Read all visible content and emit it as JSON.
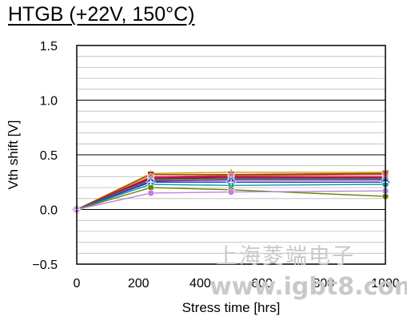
{
  "chart_data": {
    "type": "line",
    "title": "HTGB (+22V, 150°C)",
    "xlabel": "Stress time [hrs]",
    "ylabel": "Vth shift [V]",
    "xlim": [
      0,
      1000
    ],
    "ylim": [
      -0.5,
      1.5
    ],
    "x_ticks": [
      "0",
      "200",
      "400",
      "600",
      "800",
      "1000"
    ],
    "y_ticks": [
      "1.5",
      "1.0",
      "0.5",
      "0.0",
      "−0.5"
    ],
    "x_tick_values": [
      0,
      200,
      400,
      600,
      800,
      1000
    ],
    "y_tick_values": [
      1.5,
      1.0,
      0.5,
      0.0,
      -0.5
    ],
    "y_minor_step": 0.1,
    "grid": true,
    "x": [
      0,
      240,
      500,
      1000
    ],
    "series": [
      {
        "color": "#c8a000",
        "marker": "triangle",
        "values": [
          0,
          0.33,
          0.34,
          0.34
        ]
      },
      {
        "color": "#a04000",
        "marker": "square",
        "values": [
          0,
          0.32,
          0.32,
          0.33
        ]
      },
      {
        "color": "#cc3333",
        "marker": "circle",
        "values": [
          0,
          0.3,
          0.31,
          0.32
        ]
      },
      {
        "color": "#cc0066",
        "marker": "circle",
        "values": [
          0,
          0.29,
          0.3,
          0.3
        ]
      },
      {
        "color": "#7a1040",
        "marker": "circle",
        "values": [
          0,
          0.28,
          0.29,
          0.29
        ]
      },
      {
        "color": "#40a040",
        "marker": "circle",
        "values": [
          0,
          0.27,
          0.28,
          0.28
        ]
      },
      {
        "color": "#7030a0",
        "marker": "circle",
        "values": [
          0,
          0.26,
          0.27,
          0.27
        ]
      },
      {
        "color": "#3333cc",
        "marker": "diamond",
        "values": [
          0,
          0.25,
          0.25,
          0.25
        ]
      },
      {
        "color": "#00a0a0",
        "marker": "circle",
        "values": [
          0,
          0.23,
          0.22,
          0.23
        ]
      },
      {
        "color": "#708000",
        "marker": "circle",
        "values": [
          0,
          0.2,
          0.18,
          0.12
        ]
      },
      {
        "color": "#c080e0",
        "marker": "circle",
        "values": [
          0,
          0.15,
          0.16,
          0.17
        ]
      }
    ]
  },
  "watermark": {
    "chinese": "上海菱端电子",
    "url": "www.igbt8.com"
  }
}
